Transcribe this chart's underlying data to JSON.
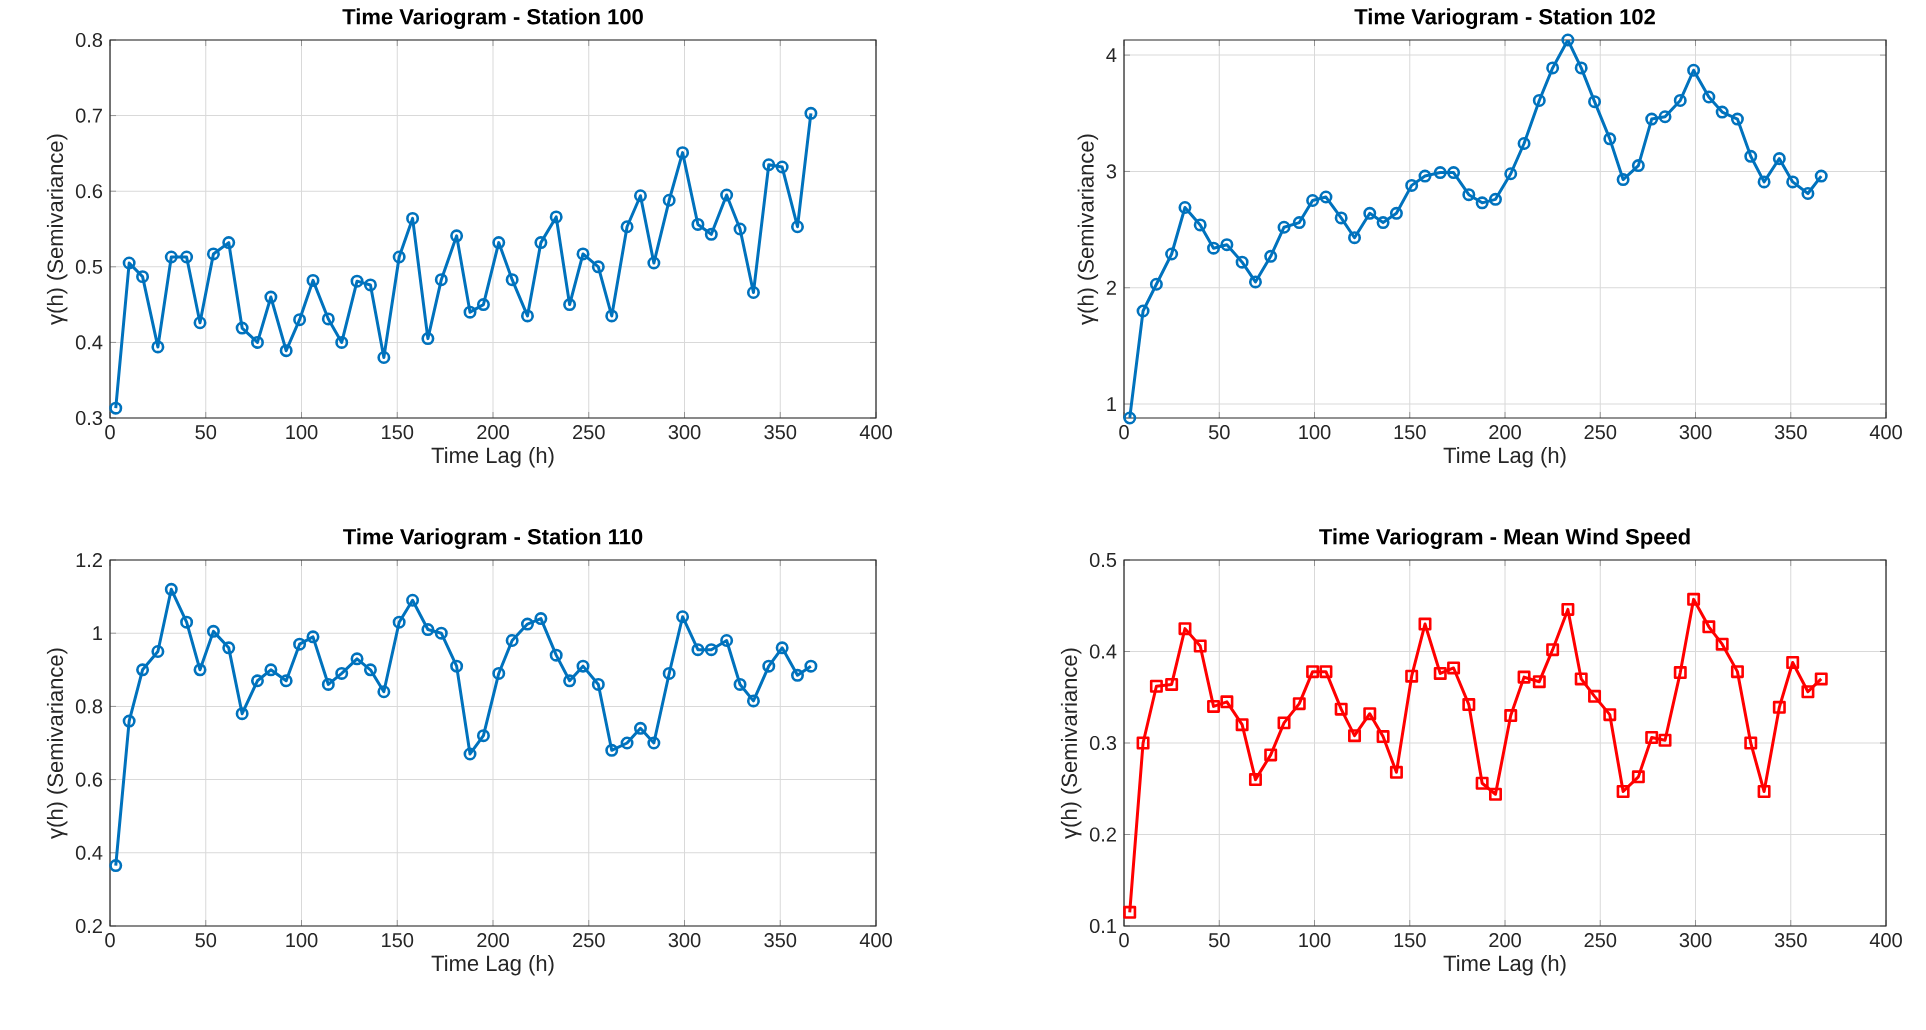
{
  "chart_data": [
    {
      "type": "line",
      "title": "Time Variogram - Station 100",
      "xlabel": "Time Lag (h)",
      "ylabel": "γ(h) (Semivariance)",
      "color": "#0072bd",
      "marker": "circle",
      "grid": true,
      "x": [
        3,
        10,
        17,
        25,
        32,
        40,
        47,
        54,
        62,
        69,
        77,
        84,
        92,
        99,
        106,
        114,
        121,
        129,
        136,
        143,
        151,
        158,
        166,
        173,
        181,
        188,
        195,
        203,
        210,
        218,
        225,
        233,
        240,
        247,
        255,
        262,
        270,
        277,
        284,
        292,
        299,
        307,
        314,
        322,
        329,
        336,
        344,
        351,
        359,
        366
      ],
      "values": [
        0.313,
        0.505,
        0.487,
        0.394,
        0.513,
        0.513,
        0.426,
        0.517,
        0.532,
        0.419,
        0.4,
        0.46,
        0.389,
        0.43,
        0.482,
        0.431,
        0.4,
        0.481,
        0.476,
        0.38,
        0.513,
        0.564,
        0.405,
        0.483,
        0.541,
        0.44,
        0.45,
        0.532,
        0.483,
        0.435,
        0.532,
        0.566,
        0.45,
        0.517,
        0.5,
        0.435,
        0.553,
        0.594,
        0.505,
        0.588,
        0.651,
        0.556,
        0.543,
        0.595,
        0.55,
        0.466,
        0.635,
        0.632,
        0.553,
        0.703
      ],
      "xlim": [
        0,
        400
      ],
      "xticks": [
        0,
        50,
        100,
        150,
        200,
        250,
        300,
        350,
        400
      ],
      "ylim": [
        0.3,
        0.8
      ],
      "yticks": [
        0.3,
        0.4,
        0.5,
        0.6,
        0.7,
        0.8
      ]
    },
    {
      "type": "line",
      "title": "Time Variogram - Station 102",
      "xlabel": "Time Lag (h)",
      "ylabel": "γ(h) (Semivariance)",
      "color": "#0072bd",
      "marker": "circle",
      "grid": true,
      "x": [
        3,
        10,
        17,
        25,
        32,
        40,
        47,
        54,
        62,
        69,
        77,
        84,
        92,
        99,
        106,
        114,
        121,
        129,
        136,
        143,
        151,
        158,
        166,
        173,
        181,
        188,
        195,
        203,
        210,
        218,
        225,
        233,
        240,
        247,
        255,
        262,
        270,
        277,
        284,
        292,
        299,
        307,
        314,
        322,
        329,
        336,
        344,
        351,
        359,
        366
      ],
      "values": [
        0.88,
        1.8,
        2.03,
        2.29,
        2.69,
        2.54,
        2.34,
        2.37,
        2.22,
        2.05,
        2.27,
        2.52,
        2.56,
        2.75,
        2.78,
        2.6,
        2.43,
        2.64,
        2.56,
        2.64,
        2.88,
        2.96,
        2.99,
        2.99,
        2.8,
        2.73,
        2.76,
        2.98,
        3.24,
        3.61,
        3.89,
        4.13,
        3.89,
        3.6,
        3.28,
        2.93,
        3.05,
        3.45,
        3.47,
        3.61,
        3.87,
        3.64,
        3.51,
        3.45,
        3.13,
        2.91,
        3.11,
        2.91,
        2.81,
        2.96
      ],
      "xlim": [
        0,
        400
      ],
      "xticks": [
        0,
        50,
        100,
        150,
        200,
        250,
        300,
        350,
        400
      ],
      "ylim": [
        0.88,
        4.13
      ],
      "yticks": [
        1,
        2,
        3,
        4
      ]
    },
    {
      "type": "line",
      "title": "Time Variogram - Station 110",
      "xlabel": "Time Lag (h)",
      "ylabel": "γ(h) (Semivariance)",
      "color": "#0072bd",
      "marker": "circle",
      "grid": true,
      "x": [
        3,
        10,
        17,
        25,
        32,
        40,
        47,
        54,
        62,
        69,
        77,
        84,
        92,
        99,
        106,
        114,
        121,
        129,
        136,
        143,
        151,
        158,
        166,
        173,
        181,
        188,
        195,
        203,
        210,
        218,
        225,
        233,
        240,
        247,
        255,
        262,
        270,
        277,
        284,
        292,
        299,
        307,
        314,
        322,
        329,
        336,
        344,
        351,
        359,
        366
      ],
      "values": [
        0.365,
        0.76,
        0.9,
        0.95,
        1.12,
        1.03,
        0.9,
        1.005,
        0.96,
        0.78,
        0.87,
        0.9,
        0.87,
        0.97,
        0.99,
        0.86,
        0.89,
        0.93,
        0.9,
        0.84,
        1.03,
        1.09,
        1.01,
        1.0,
        0.91,
        0.67,
        0.72,
        0.89,
        0.98,
        1.025,
        1.04,
        0.94,
        0.87,
        0.91,
        0.86,
        0.68,
        0.7,
        0.74,
        0.7,
        0.89,
        1.045,
        0.955,
        0.955,
        0.98,
        0.86,
        0.815,
        0.91,
        0.96,
        0.885,
        0.91
      ],
      "xlim": [
        0,
        400
      ],
      "xticks": [
        0,
        50,
        100,
        150,
        200,
        250,
        300,
        350,
        400
      ],
      "ylim": [
        0.2,
        1.2
      ],
      "yticks": [
        0.2,
        0.4,
        0.6,
        0.8,
        1,
        1.2
      ]
    },
    {
      "type": "line",
      "title": "Time Variogram - Mean Wind Speed",
      "xlabel": "Time Lag (h)",
      "ylabel": "γ(h) (Semivariance)",
      "color": "#ff0000",
      "marker": "square",
      "grid": true,
      "x": [
        3,
        10,
        17,
        25,
        32,
        40,
        47,
        54,
        62,
        69,
        77,
        84,
        92,
        99,
        106,
        114,
        121,
        129,
        136,
        143,
        151,
        158,
        166,
        173,
        181,
        188,
        195,
        203,
        210,
        218,
        225,
        233,
        240,
        247,
        255,
        262,
        270,
        277,
        284,
        292,
        299,
        307,
        314,
        322,
        329,
        336,
        344,
        351,
        359,
        366
      ],
      "values": [
        0.115,
        0.3,
        0.362,
        0.364,
        0.425,
        0.406,
        0.34,
        0.345,
        0.32,
        0.26,
        0.287,
        0.322,
        0.343,
        0.378,
        0.378,
        0.337,
        0.308,
        0.332,
        0.307,
        0.268,
        0.373,
        0.43,
        0.376,
        0.382,
        0.342,
        0.256,
        0.244,
        0.33,
        0.372,
        0.367,
        0.402,
        0.446,
        0.37,
        0.351,
        0.331,
        0.247,
        0.263,
        0.306,
        0.303,
        0.377,
        0.457,
        0.427,
        0.408,
        0.378,
        0.3,
        0.247,
        0.339,
        0.388,
        0.356,
        0.37
      ],
      "xlim": [
        0,
        400
      ],
      "xticks": [
        0,
        50,
        100,
        150,
        200,
        250,
        300,
        350,
        400
      ],
      "ylim": [
        0.1,
        0.5
      ],
      "yticks": [
        0.1,
        0.2,
        0.3,
        0.4,
        0.5
      ]
    }
  ]
}
